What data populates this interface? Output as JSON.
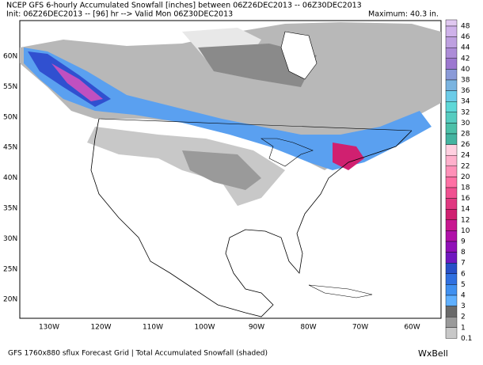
{
  "header": {
    "line1": "NCEP GFS 6-hourly Accumulated Snowfall [inches] between 06Z26DEC2013 -- 06Z30DEC2013",
    "line2": "Init: 06Z26DEC2013 -- [96] hr --> Valid Mon 06Z30DEC2013",
    "maximum": "Maximum:  40.3 in."
  },
  "map": {
    "lat_labels": [
      "60N",
      "55N",
      "50N",
      "45N",
      "40N",
      "35N",
      "30N",
      "25N",
      "20N"
    ],
    "lon_labels": [
      "130W",
      "120W",
      "110W",
      "100W",
      "90W",
      "80W",
      "70W",
      "60W"
    ]
  },
  "colorbar": {
    "labels": [
      "48",
      "46",
      "44",
      "42",
      "40",
      "38",
      "36",
      "34",
      "32",
      "30",
      "28",
      "26",
      "24",
      "22",
      "20",
      "18",
      "16",
      "14",
      "12",
      "10",
      "9",
      "8",
      "7",
      "6",
      "5",
      "4",
      "3",
      "2",
      "1",
      "0.1"
    ],
    "colors": [
      "#e0c8f0",
      "#cfb2ea",
      "#bea0e0",
      "#ad8cd8",
      "#9c78d0",
      "#8a9ad8",
      "#7ab4e0",
      "#6ccce8",
      "#5ed8d8",
      "#56ccc0",
      "#4cc0a8",
      "#44b4a0",
      "#ffd0e0",
      "#ffb0cc",
      "#ff90b8",
      "#ff70a4",
      "#f05090",
      "#e03880",
      "#d02070",
      "#c81890",
      "#b010a8",
      "#9010b8",
      "#7018c0",
      "#2850c8",
      "#3070e0",
      "#4090f0",
      "#60b0ff",
      "#6a6a6a",
      "#9a9a9a",
      "#c8c8c8"
    ]
  },
  "footer": {
    "text": "GFS 1760x880 sflux Forecast Grid | Total Accumulated Snowfall (shaded)",
    "logo": "WxBell"
  }
}
